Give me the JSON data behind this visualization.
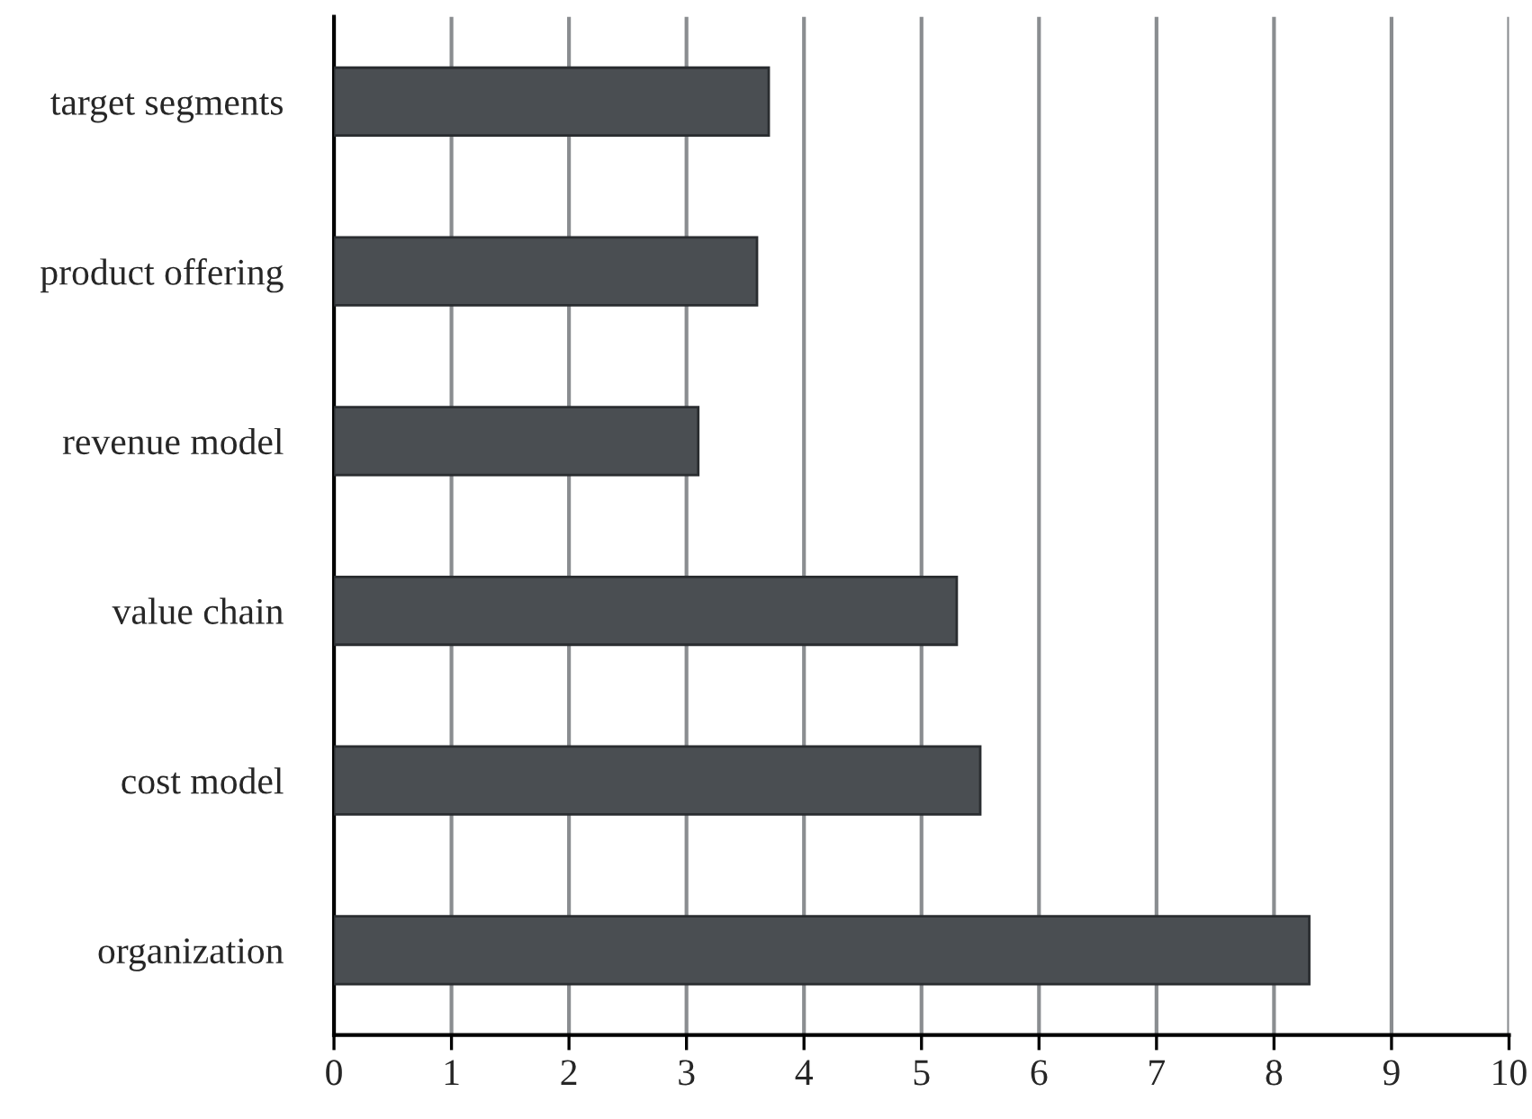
{
  "chart_data": {
    "type": "bar",
    "orientation": "horizontal",
    "categories": [
      "target segments",
      "product offering",
      "revenue model",
      "value chain",
      "cost model",
      "organization"
    ],
    "values": [
      3.7,
      3.6,
      3.1,
      5.3,
      5.5,
      8.3
    ],
    "color": "#4a4e52",
    "xlim": [
      0,
      10
    ],
    "xticks": [
      0,
      1,
      2,
      3,
      4,
      5,
      6,
      7,
      8,
      9,
      10
    ],
    "grid": "x"
  }
}
